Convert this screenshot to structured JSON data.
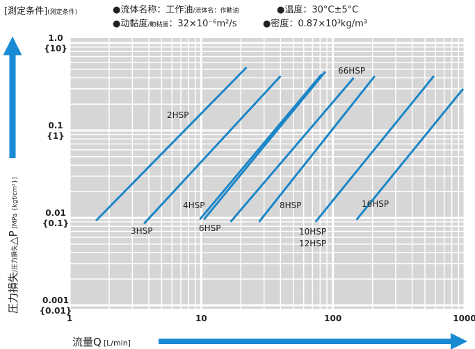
{
  "chart_data": {
    "type": "line",
    "header": {
      "condition": "[測定条件]",
      "condition_sub": "(測定条件)",
      "fluid": "●流体名称：工作油",
      "fluid_sub": "/流体名：作動油",
      "temp": "●温度：30°C±5°C",
      "visc": "●动黏度",
      "visc_sub": "/動粘度",
      "visc_val": "：32×10⁻⁶m²/s",
      "density": "●密度：0.87×10³kg/m³"
    },
    "y_label": "圧力損失",
    "y_label_sub": "/圧力損失",
    "y_label_sym": "△P",
    "y_label_unit": "[MPa {kgf/cm²}]",
    "x_label": "流量Q",
    "x_label_unit": "[L/min]",
    "log_x": true,
    "log_y": true,
    "grid": true,
    "xlim": [
      1,
      1000
    ],
    "ylim": [
      0.001,
      1
    ],
    "xticks": [
      1,
      10,
      100,
      1000
    ],
    "yticks": [
      {
        "value": 1,
        "label": "1.0",
        "sublabel": "{10}"
      },
      {
        "value": 0.1,
        "label": "0.1",
        "sublabel": "{1}"
      },
      {
        "value": 0.01,
        "label": "0.01",
        "sublabel": "{0.1}"
      },
      {
        "value": 0.001,
        "label": "0.001",
        "sublabel": "{0.01}"
      }
    ],
    "color": "#1a86c8",
    "series": [
      {
        "name": "2HSP",
        "labels": [
          "2HSP"
        ],
        "x": [
          1.59,
          22.1
        ],
        "y": [
          0.0093,
          0.527
        ]
      },
      {
        "name": "3HSP",
        "labels": [
          "3HSP"
        ],
        "x": [
          3.68,
          40.1
        ],
        "y": [
          0.0086,
          0.42
        ]
      },
      {
        "name": "4HSP",
        "labels": [
          "4HSP"
        ],
        "x": [
          9.76,
          82.3
        ],
        "y": [
          0.0096,
          0.44
        ]
      },
      {
        "name": "6HSP",
        "labels": [
          "6HSP"
        ],
        "x": [
          10.5,
          87.5
        ],
        "y": [
          0.0096,
          0.47
        ]
      },
      {
        "name": "66HSP",
        "labels": [
          "66HSP"
        ],
        "x": [
          16.7,
          144
        ],
        "y": [
          0.009,
          0.4
        ]
      },
      {
        "name": "8HSP",
        "labels": [
          "8HSP"
        ],
        "x": [
          27.5,
          208
        ],
        "y": [
          0.009,
          0.42
        ]
      },
      {
        "name": "10HSP",
        "labels": [
          "10HSP",
          "12HSP"
        ],
        "x": [
          73.8,
          585
        ],
        "y": [
          0.009,
          0.42
        ]
      },
      {
        "name": "16HSP",
        "labels": [
          "16HSP"
        ],
        "x": [
          151,
          976
        ],
        "y": [
          0.0095,
          0.3
        ]
      }
    ]
  }
}
